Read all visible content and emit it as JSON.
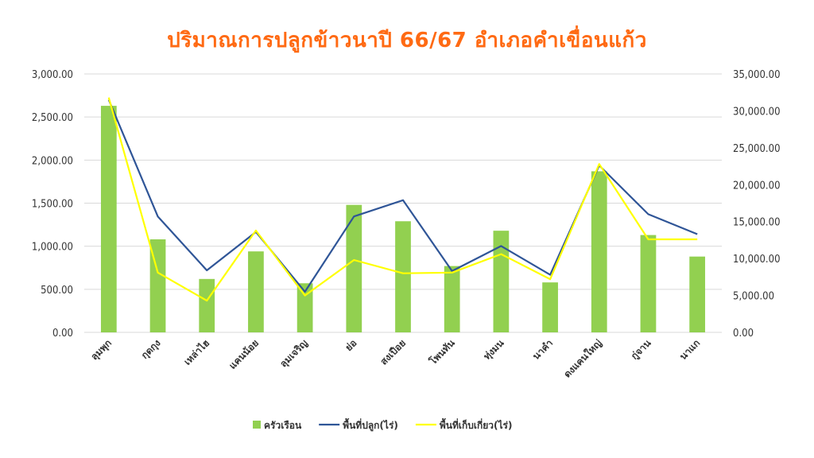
{
  "chart_data": {
    "type": "bar",
    "title": "ปริมาณการปลูกข้าวนาปี 66/67 อำเภอคำเขื่อนแก้ว",
    "categories": [
      "ลุมพุก",
      "กุดกุง",
      "เหล่าไฮ",
      "แคนน้อย",
      "ลุมเจริญ",
      "ย่อ",
      "สงเปือย",
      "โพนทัน",
      "ทุ่งมน",
      "นาคำ",
      "ดงแคนใหญ่",
      "กู่จาน",
      "นาแก"
    ],
    "left_axis": {
      "min": 0,
      "max": 3000,
      "ticks": [
        "0.00",
        "500.00",
        "1,000.00",
        "1,500.00",
        "2,000.00",
        "2,500.00",
        "3,000.00"
      ]
    },
    "right_axis": {
      "min": 0,
      "max": 35000,
      "ticks": [
        "0.00",
        "5,000.00",
        "10,000.00",
        "15,000.00",
        "20,000.00",
        "25,000.00",
        "30,000.00",
        "35,000.00"
      ]
    },
    "series": [
      {
        "name": "ครัวเรือน",
        "type": "bar",
        "axis": "left",
        "color": "#92d050",
        "values": [
          2630,
          1080,
          620,
          940,
          570,
          1480,
          1290,
          770,
          1180,
          580,
          1870,
          1130,
          880
        ]
      },
      {
        "name": "พื้นที่ปลูก(ไร่)",
        "type": "line",
        "axis": "right",
        "color": "#2f5597",
        "values": [
          31500,
          15700,
          8400,
          13600,
          5500,
          15700,
          17900,
          8300,
          11700,
          7800,
          22600,
          16000,
          13300
        ]
      },
      {
        "name": "พื้นที่เก็บเกี่ยว(ไร่)",
        "type": "line",
        "axis": "right",
        "color": "#ffff00",
        "values": [
          31800,
          8100,
          4300,
          13800,
          5000,
          9800,
          8000,
          8100,
          10600,
          7200,
          22800,
          12600,
          12600
        ]
      }
    ],
    "grid": true,
    "legend": "bottom"
  }
}
